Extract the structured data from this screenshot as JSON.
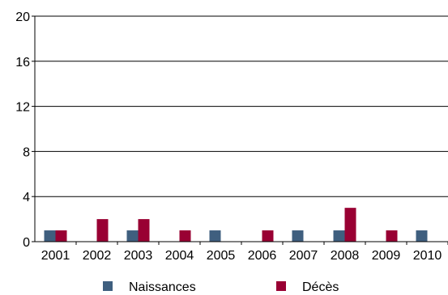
{
  "chart_data": {
    "type": "bar",
    "categories": [
      "2001",
      "2002",
      "2003",
      "2004",
      "2005",
      "2006",
      "2007",
      "2008",
      "2009",
      "2010"
    ],
    "series": [
      {
        "name": "Naissances",
        "color": "#3f5f7f",
        "values": [
          1,
          0,
          1,
          0,
          1,
          0,
          1,
          1,
          0,
          1
        ]
      },
      {
        "name": "Décès",
        "color": "#990033",
        "values": [
          1,
          2,
          2,
          1,
          0,
          1,
          0,
          3,
          1,
          0
        ]
      }
    ],
    "ylim": [
      0,
      20
    ],
    "yticks": [
      0,
      4,
      8,
      12,
      16,
      20
    ],
    "grid": true,
    "legend_position": "bottom"
  }
}
